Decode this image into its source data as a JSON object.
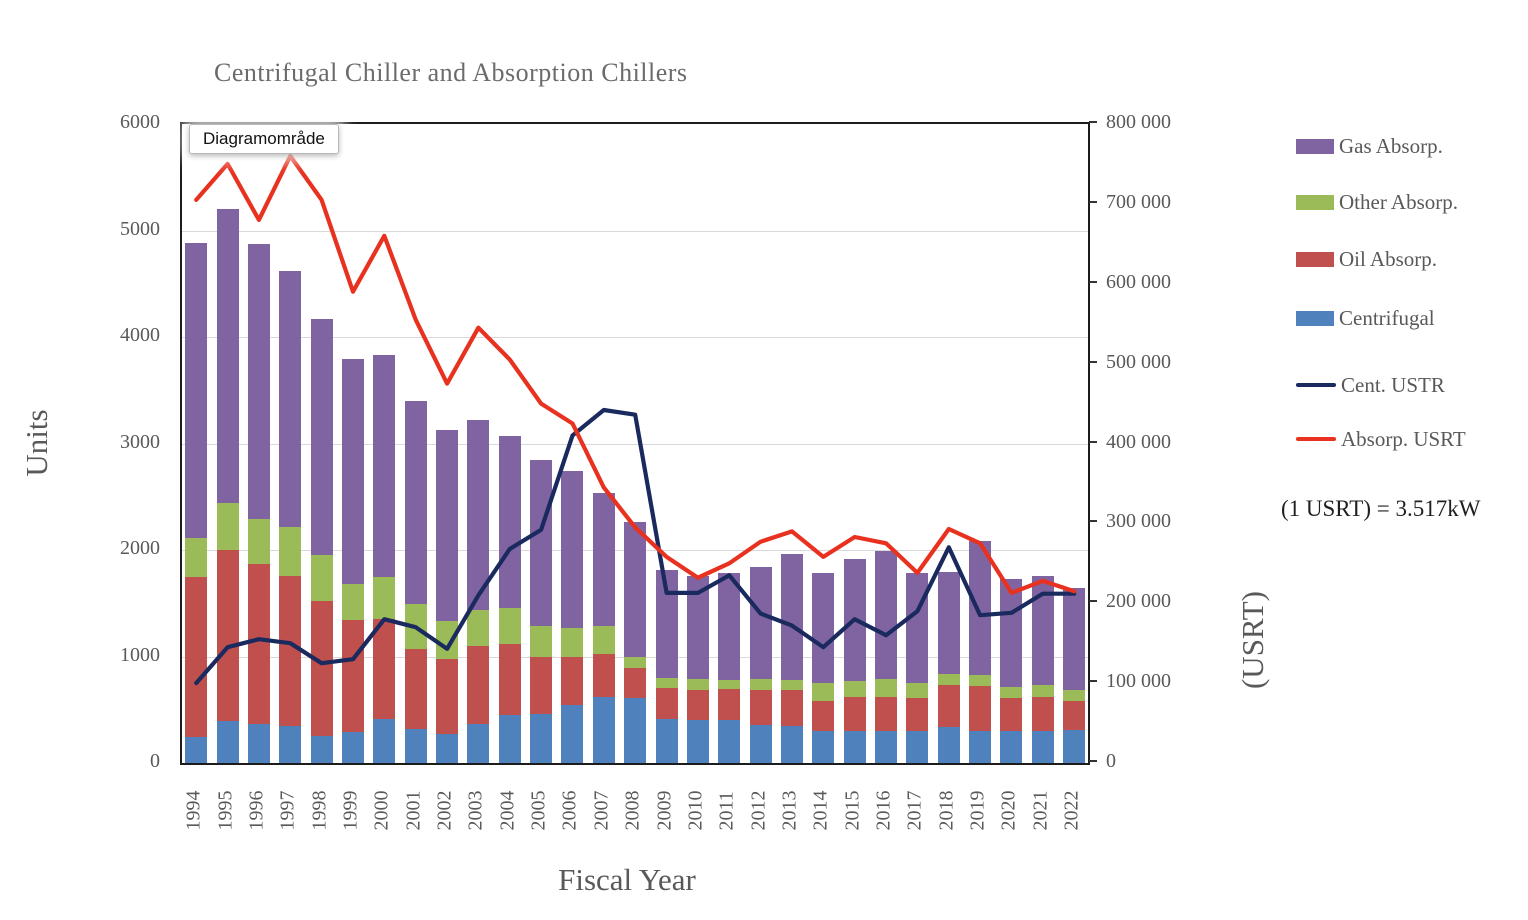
{
  "window": {
    "tooltip_label": "Diagramområde"
  },
  "chart_data": {
    "type": "combo (stacked bar + line)",
    "title": "Centrifugal Chiller and Absorption Chillers",
    "xlabel": "Fiscal Year",
    "ylabel_left": "Units",
    "ylabel_right": "(USRT)",
    "note": "(1 USRT) = 3.517kW",
    "ylim_left": [
      0,
      6000
    ],
    "ylim_right": [
      0,
      800000
    ],
    "grid": "horizontal gridlines every 1000 units, color #d9d9d9",
    "legend_position": "right",
    "left_axis_ticks": [
      {
        "value": 0,
        "label": "0"
      },
      {
        "value": 1000,
        "label": "1000"
      },
      {
        "value": 2000,
        "label": "2000"
      },
      {
        "value": 3000,
        "label": "3000"
      },
      {
        "value": 4000,
        "label": "4000"
      },
      {
        "value": 5000,
        "label": "5000"
      },
      {
        "value": 6000,
        "label": "6000"
      }
    ],
    "right_axis_ticks": [
      {
        "value": 0,
        "label": "0"
      },
      {
        "value": 100000,
        "label": "100 000"
      },
      {
        "value": 200000,
        "label": "200 000"
      },
      {
        "value": 300000,
        "label": "300 000"
      },
      {
        "value": 400000,
        "label": "400 000"
      },
      {
        "value": 500000,
        "label": "500 000"
      },
      {
        "value": 600000,
        "label": "600 000"
      },
      {
        "value": 700000,
        "label": "700 000"
      },
      {
        "value": 800000,
        "label": "800 000"
      }
    ],
    "categories": [
      1994,
      1995,
      1996,
      1997,
      1998,
      1999,
      2000,
      2001,
      2002,
      2003,
      2004,
      2005,
      2006,
      2007,
      2008,
      2009,
      2010,
      2011,
      2012,
      2013,
      2014,
      2015,
      2016,
      2017,
      2018,
      2019,
      2020,
      2021,
      2022
    ],
    "series": [
      {
        "name": "Centrifugal",
        "type": "bar",
        "axis": "left",
        "color": "#4F81BD",
        "values": [
          240,
          390,
          365,
          345,
          255,
          290,
          410,
          320,
          270,
          370,
          450,
          460,
          545,
          620,
          610,
          410,
          400,
          400,
          360,
          345,
          300,
          300,
          300,
          300,
          340,
          300,
          300,
          300,
          310
        ]
      },
      {
        "name": "Oil Absorp.",
        "type": "bar",
        "axis": "left",
        "color": "#C0504D",
        "values": [
          1510,
          1610,
          1500,
          1415,
          1265,
          1055,
          940,
          755,
          710,
          730,
          670,
          540,
          450,
          400,
          280,
          290,
          290,
          295,
          325,
          340,
          280,
          320,
          320,
          310,
          390,
          420,
          310,
          320,
          270
        ]
      },
      {
        "name": "Other Absorp.",
        "type": "bar",
        "axis": "left",
        "color": "#9BBB59",
        "values": [
          360,
          440,
          430,
          460,
          430,
          340,
          395,
          420,
          350,
          340,
          335,
          290,
          270,
          270,
          110,
          100,
          100,
          85,
          105,
          95,
          170,
          150,
          165,
          145,
          105,
          105,
          105,
          110,
          105
        ]
      },
      {
        "name": "Gas Absorp.",
        "type": "bar",
        "axis": "left",
        "color": "#8064A2",
        "values": [
          2770,
          2760,
          2580,
          2400,
          2220,
          2105,
          2085,
          1905,
          1800,
          1780,
          1615,
          1560,
          1475,
          1250,
          1260,
          1010,
          970,
          1000,
          1050,
          1180,
          1030,
          1150,
          1205,
          1025,
          955,
          1255,
          1015,
          1030,
          955
        ]
      },
      {
        "name": "Cent. USTR",
        "type": "line",
        "axis": "right",
        "color": "#1B2A5E",
        "values": [
          100000,
          145000,
          155000,
          150000,
          125000,
          130000,
          180000,
          170000,
          143000,
          210000,
          268000,
          292000,
          410000,
          442000,
          436000,
          213000,
          213000,
          235000,
          187000,
          172000,
          145000,
          180000,
          160000,
          190000,
          270000,
          185000,
          188000,
          212000,
          212000
        ]
      },
      {
        "name": "Absorp. USRT",
        "type": "line",
        "axis": "right",
        "color": "#E8311F",
        "values": [
          705000,
          750000,
          680000,
          760000,
          705000,
          590000,
          660000,
          555000,
          475000,
          545000,
          505000,
          450000,
          425000,
          345000,
          295000,
          258000,
          232000,
          250000,
          277000,
          290000,
          258000,
          283000,
          275000,
          238000,
          293000,
          275000,
          213000,
          228000,
          215000
        ]
      }
    ],
    "legend_order": [
      "Gas Absorp.",
      "Other Absorp.",
      "Oil Absorp.",
      "Centrifugal",
      "Cent. USTR",
      "Absorp. USRT"
    ],
    "bar_totals": [
      4880,
      5200,
      4875,
      4620,
      4170,
      3790,
      3830,
      3400,
      3130,
      3220,
      3070,
      2850,
      2740,
      2540,
      2260,
      1810,
      1760,
      1780,
      1840,
      1960,
      1780,
      1920,
      1990,
      1780,
      1790,
      2080,
      1730,
      1760,
      1640
    ]
  }
}
